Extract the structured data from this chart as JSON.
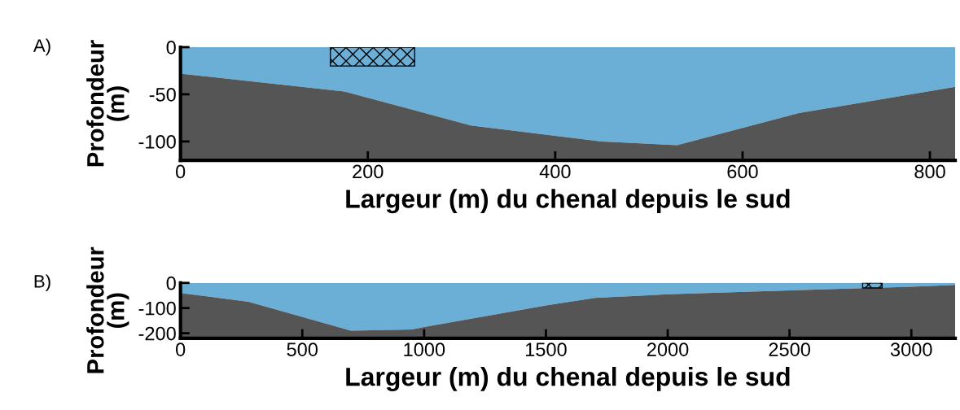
{
  "chart_data": [
    {
      "type": "area",
      "title": "A)",
      "xlabel": "Largeur (m) du chenal depuis le sud",
      "ylabel": "Profondeur\n(m)",
      "x": [
        0,
        175,
        310,
        450,
        530,
        660,
        827
      ],
      "series": [
        {
          "color": "#6baed6",
          "values": [
            -28,
            -47,
            -83,
            -100,
            -104,
            -70,
            -42
          ]
        },
        {
          "color": "#555555",
          "values": [
            -92,
            -73,
            -37,
            -20,
            -16,
            -50,
            -78
          ]
        }
      ],
      "stacked": true,
      "bands": [
        {
          "axis": "x",
          "from": 160,
          "to": 250
        }
      ],
      "xlim": [
        0,
        827
      ],
      "ylim": [
        -120,
        0
      ],
      "xticks": [
        0,
        200,
        400,
        600,
        800
      ],
      "yticks": [
        0,
        -50,
        -100
      ],
      "grid": false
    },
    {
      "type": "area",
      "title": "B)",
      "xlabel": "Largeur (m) du chenal depuis le sud",
      "ylabel": "Profondeur\n(m)",
      "x": [
        0,
        280,
        700,
        950,
        1000,
        1500,
        1700,
        2000,
        2500,
        3000,
        3180
      ],
      "series": [
        {
          "color": "#6baed6",
          "values": [
            -40,
            -75,
            -190,
            -185,
            -175,
            -90,
            -60,
            -45,
            -30,
            -15,
            -8
          ]
        },
        {
          "color": "#555555",
          "values": [
            -180,
            -145,
            -30,
            -35,
            -45,
            -130,
            -160,
            -175,
            -190,
            -205,
            -212
          ]
        }
      ],
      "stacked": true,
      "bands": [
        {
          "axis": "x",
          "from": 2800,
          "to": 2880
        }
      ],
      "xlim": [
        0,
        3180
      ],
      "ylim": [
        -220,
        0
      ],
      "xticks": [
        0,
        500,
        1000,
        1500,
        2000,
        2500,
        3000
      ],
      "yticks": [
        0,
        -100,
        -200
      ],
      "grid": false
    }
  ]
}
